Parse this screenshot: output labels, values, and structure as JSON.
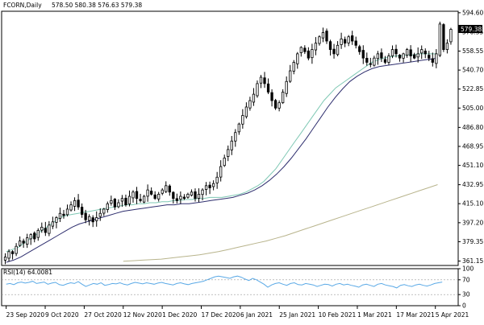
{
  "header": {
    "symbol": "FCORN,Daily",
    "ohlc": "578.50 580.38 576.63 579.38"
  },
  "price_badge": "579.38",
  "rsi_label": "RSI(14) 64.0081",
  "colors": {
    "background": "#ffffff",
    "candle_up": "#ffffff",
    "candle_down": "#000000",
    "candle_outline": "#000000",
    "ma_fast": "#7fc8b4",
    "ma_mid": "#2e2e6e",
    "ma_slow": "#b8b48c",
    "rsi_line": "#5aa9e6",
    "axis": "#000000"
  },
  "chart_data": [
    {
      "type": "candlestick",
      "title": "FCORN,Daily",
      "y_ticks": [
        "594.60",
        "576.35",
        "558.55",
        "540.70",
        "522.85",
        "505.00",
        "486.80",
        "468.95",
        "451.10",
        "432.95",
        "415.10",
        "397.20",
        "379.35",
        "361.15"
      ],
      "x_ticks": [
        "23 Sep 2020",
        "9 Oct 2020",
        "27 Oct 2020",
        "12 Nov 2020",
        "1 Dec 2020",
        "17 Dec 2020",
        "6 Jan 2021",
        "25 Jan 2021",
        "10 Feb 2021",
        "1 Mar 2021",
        "17 Mar 2021",
        "5 Apr 2021"
      ],
      "ylim": [
        357,
        596
      ],
      "last_price": 579.38,
      "close_series": [
        365,
        370,
        368,
        375,
        380,
        378,
        383,
        386,
        382,
        390,
        393,
        388,
        395,
        398,
        402,
        406,
        404,
        410,
        414,
        418,
        412,
        405,
        400,
        403,
        398,
        402,
        406,
        410,
        415,
        418,
        412,
        416,
        420,
        414,
        422,
        426,
        420,
        418,
        422,
        428,
        424,
        420,
        424,
        428,
        432,
        426,
        420,
        418,
        422,
        420,
        424,
        426,
        420,
        424,
        428,
        432,
        430,
        434,
        440,
        450,
        458,
        466,
        474,
        482,
        490,
        498,
        506,
        512,
        518,
        528,
        534,
        528,
        520,
        512,
        505,
        510,
        520,
        530,
        540,
        548,
        556,
        562,
        558,
        552,
        560,
        566,
        572,
        576,
        568,
        560,
        556,
        564,
        570,
        566,
        572,
        568,
        564,
        558,
        552,
        548,
        546,
        552,
        556,
        552,
        548,
        554,
        560,
        556,
        552,
        556,
        560,
        554,
        552,
        556,
        560,
        556,
        552,
        548,
        556,
        584,
        560,
        566,
        579
      ],
      "ma_fast": [
        370,
        372,
        374,
        378,
        382,
        386,
        390,
        394,
        398,
        402,
        404,
        405,
        406,
        407,
        408,
        409,
        410,
        411,
        412,
        413,
        414,
        414,
        415,
        415,
        416,
        416,
        417,
        417,
        418,
        418,
        419,
        419,
        420,
        420,
        421,
        421,
        421,
        422,
        423,
        424,
        426,
        429,
        432,
        436,
        442,
        448,
        456,
        464,
        472,
        480,
        488,
        496,
        504,
        512,
        518,
        524,
        528,
        532,
        536,
        540,
        544,
        548,
        550,
        552,
        553,
        554,
        554,
        555,
        555,
        556,
        556,
        556,
        556
      ],
      "ma_mid": [
        360,
        362,
        365,
        369,
        373,
        377,
        381,
        385,
        389,
        393,
        396,
        398,
        400,
        402,
        404,
        406,
        408,
        409,
        410,
        411,
        412,
        413,
        414,
        414,
        415,
        415,
        416,
        417,
        418,
        419,
        420,
        421,
        423,
        425,
        428,
        432,
        437,
        443,
        450,
        458,
        467,
        476,
        486,
        496,
        506,
        515,
        523,
        530,
        535,
        539,
        542,
        544,
        545,
        546,
        547,
        548,
        549,
        550,
        551,
        552
      ],
      "ma_slow": [
        361,
        361.5,
        362,
        362.5,
        363,
        364,
        365,
        366,
        367,
        368.5,
        370,
        372,
        374,
        376,
        378,
        380,
        382.5,
        385,
        388,
        391,
        394,
        397,
        400,
        403,
        406,
        409,
        412,
        415,
        418,
        421,
        424,
        427,
        430,
        433
      ],
      "ma_slow_range": [
        "12 Nov 2020",
        "5 Apr 2021"
      ]
    },
    {
      "type": "line",
      "title": "RSI(14) 64.0081",
      "y_ticks": [
        "100",
        "70",
        "30",
        "0"
      ],
      "ylim": [
        0,
        100
      ],
      "values": [
        58,
        60,
        57,
        62,
        64,
        61,
        63,
        66,
        60,
        62,
        64,
        58,
        61,
        63,
        57,
        55,
        59,
        62,
        60,
        65,
        58,
        52,
        56,
        60,
        58,
        62,
        55,
        57,
        60,
        59,
        62,
        58,
        56,
        60,
        63,
        61,
        59,
        62,
        60,
        58,
        61,
        63,
        60,
        58,
        56,
        60,
        62,
        59,
        57,
        60,
        62,
        64,
        66,
        70,
        74,
        78,
        80,
        78,
        76,
        74,
        78,
        80,
        77,
        72,
        68,
        74,
        70,
        64,
        58,
        50,
        56,
        60,
        62,
        58,
        55,
        60,
        62,
        57,
        56,
        60,
        58,
        56,
        52,
        55,
        58,
        57,
        53,
        58,
        60,
        56,
        58,
        55,
        53,
        50,
        56,
        58,
        55,
        52,
        58,
        60,
        56,
        54,
        52,
        48,
        55,
        57,
        54,
        52,
        56,
        58,
        55,
        53,
        56,
        60,
        62,
        64
      ]
    }
  ]
}
